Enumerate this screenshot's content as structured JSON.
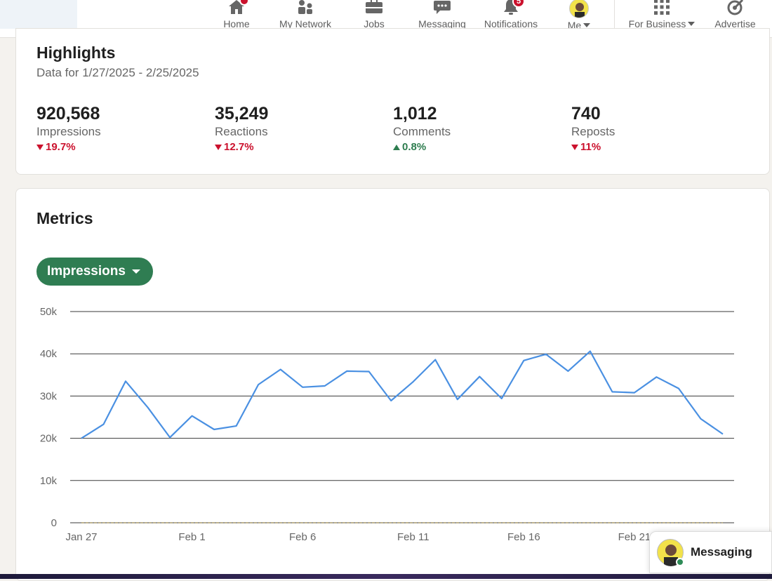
{
  "nav": {
    "items": [
      {
        "label": "Home",
        "icon": "home-icon",
        "badge": ""
      },
      {
        "label": "My Network",
        "icon": "people-icon",
        "badge": ""
      },
      {
        "label": "Jobs",
        "icon": "briefcase-icon",
        "badge": ""
      },
      {
        "label": "Messaging",
        "icon": "chat-icon",
        "badge": ""
      },
      {
        "label": "Notifications",
        "icon": "bell-icon",
        "badge": "5"
      },
      {
        "label": "Me",
        "icon": "avatar",
        "badge": ""
      },
      {
        "label": "For Business",
        "icon": "grid-icon",
        "badge": ""
      },
      {
        "label": "Advertise",
        "icon": "advertise-icon",
        "badge": ""
      }
    ]
  },
  "highlights": {
    "title": "Highlights",
    "date_range": "Data for 1/27/2025 - 2/25/2025",
    "stats": [
      {
        "value": "920,568",
        "label": "Impressions",
        "change": "19.7%",
        "direction": "down"
      },
      {
        "value": "35,249",
        "label": "Reactions",
        "change": "12.7%",
        "direction": "down"
      },
      {
        "value": "1,012",
        "label": "Comments",
        "change": "0.8%",
        "direction": "up"
      },
      {
        "value": "740",
        "label": "Reposts",
        "change": "11%",
        "direction": "down"
      }
    ]
  },
  "metrics": {
    "title": "Metrics",
    "selector_label": "Impressions"
  },
  "chart_data": {
    "type": "line",
    "title": "",
    "xlabel": "",
    "ylabel": "",
    "ylim": [
      0,
      50000
    ],
    "y_ticks": [
      "0",
      "10k",
      "20k",
      "30k",
      "40k",
      "50k"
    ],
    "y_tick_values": [
      0,
      10000,
      20000,
      30000,
      40000,
      50000
    ],
    "x_tick_labels": [
      "Jan 27",
      "Feb 1",
      "Feb 6",
      "Feb 11",
      "Feb 16",
      "Feb 21"
    ],
    "x_tick_dates": [
      "2025-01-27",
      "2025-02-01",
      "2025-02-06",
      "2025-02-11",
      "2025-02-16",
      "2025-02-21"
    ],
    "x": [
      "2025-01-27",
      "2025-01-28",
      "2025-01-29",
      "2025-01-30",
      "2025-01-31",
      "2025-02-01",
      "2025-02-02",
      "2025-02-03",
      "2025-02-04",
      "2025-02-05",
      "2025-02-06",
      "2025-02-07",
      "2025-02-08",
      "2025-02-09",
      "2025-02-10",
      "2025-02-11",
      "2025-02-12",
      "2025-02-13",
      "2025-02-14",
      "2025-02-15",
      "2025-02-16",
      "2025-02-17",
      "2025-02-18",
      "2025-02-19",
      "2025-02-20",
      "2025-02-21",
      "2025-02-22",
      "2025-02-23",
      "2025-02-24",
      "2025-02-25"
    ],
    "series": [
      {
        "color": "#4a90e2",
        "values": [
          20000,
          23300,
          33500,
          27300,
          20200,
          25300,
          22100,
          22900,
          32700,
          36300,
          32100,
          32400,
          35900,
          35800,
          28900,
          33400,
          38600,
          29200,
          34600,
          29400,
          38400,
          39900,
          35900,
          40600,
          31000,
          30800,
          34500,
          31800,
          24600,
          21000
        ]
      },
      {
        "color": "#a89a6a",
        "values": [
          0,
          0,
          0,
          0,
          0,
          0,
          0,
          0,
          0,
          0,
          0,
          0,
          0,
          0,
          0,
          0,
          0,
          0,
          0,
          0,
          0,
          0,
          0,
          0,
          0,
          0,
          0,
          0,
          0,
          0
        ]
      }
    ],
    "grid": true,
    "legend": "none"
  },
  "messaging_widget": {
    "label": "Messaging"
  },
  "colors": {
    "accent_green": "#2f7d52",
    "negative_red": "#cb112d",
    "positive_green": "#2e7d4f",
    "line_blue": "#4a90e2"
  }
}
